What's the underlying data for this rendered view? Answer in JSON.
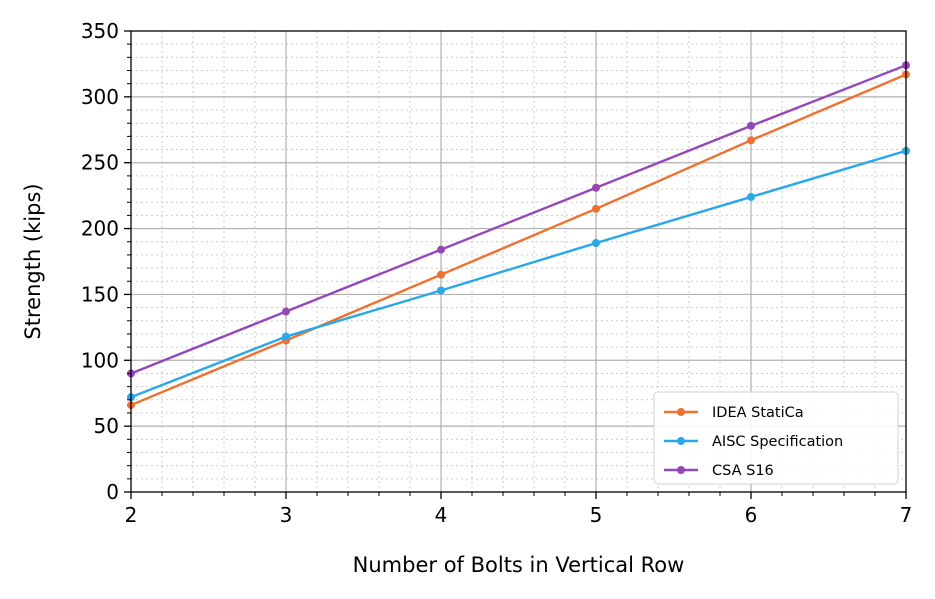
{
  "chart_data": {
    "type": "line",
    "xlabel": "Number of Bolts in Vertical Row",
    "ylabel": "Strength (kips)",
    "xlim": [
      2,
      7
    ],
    "ylim": [
      0,
      350
    ],
    "x_ticks": [
      2,
      3,
      4,
      5,
      6,
      7
    ],
    "y_ticks": [
      0,
      50,
      100,
      150,
      200,
      250,
      300,
      350
    ],
    "x": [
      2,
      3,
      4,
      5,
      6,
      7
    ],
    "grid": {
      "major": true,
      "minor": true
    },
    "legend_position": "lower-right",
    "series": [
      {
        "name": "IDEA StatiCa",
        "color": "#f07030",
        "values": [
          66,
          115,
          165,
          215,
          267,
          317
        ]
      },
      {
        "name": "AISC Specification",
        "color": "#28a8e8",
        "values": [
          72,
          118,
          153,
          189,
          224,
          259
        ]
      },
      {
        "name": "CSA S16",
        "color": "#9448b8",
        "values": [
          90,
          137,
          184,
          231,
          278,
          324
        ]
      }
    ]
  }
}
